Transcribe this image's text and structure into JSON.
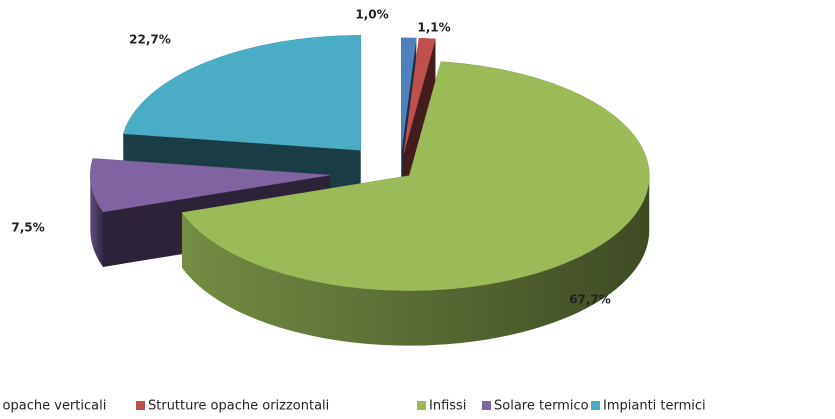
{
  "chart_data": {
    "type": "pie",
    "categories": [
      "Strutture opache verticali",
      "Strutture opache orizzontali",
      "Infissi",
      "Solare termico",
      "Impianti termici"
    ],
    "values": [
      1.0,
      1.1,
      67.7,
      7.5,
      22.7
    ],
    "value_labels": [
      "1,0%",
      "1,1%",
      "67,7%",
      "7,5%",
      "22,7%"
    ],
    "colors": [
      "#4f81bd",
      "#c0504d",
      "#9bbb59",
      "#8064a2",
      "#4bacc6"
    ],
    "legend": "bottom"
  }
}
